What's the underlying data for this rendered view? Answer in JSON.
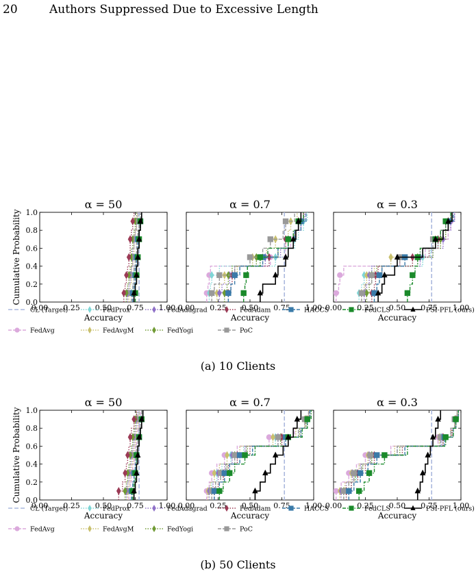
{
  "header": {
    "page_number": "20",
    "running_head": "Authors Suppressed Due to Excessive Length"
  },
  "colors": {
    "CL (Target)": "#aab8dd",
    "FedAvg": "#dba9dc",
    "FedProx": "#7fd6d6",
    "FedAvgM": "#c9c06e",
    "FedAdagrad": "#8e6fc7",
    "FedYogi": "#6f9a33",
    "FedAdam": "#9b3a55",
    "PoC": "#999999",
    "HACCS": "#3a7aa8",
    "FedCLS": "#1a8a2a",
    "PSI-PFL (ours)": "#000000"
  },
  "subfigures": [
    {
      "id": "a",
      "caption": "(a) 10 Clients"
    },
    {
      "id": "b",
      "caption": "(b) 50 Clients"
    }
  ],
  "legend": [
    "CL (Target)",
    "FedAvg",
    "FedProx",
    "FedAvgM",
    "FedAdagrad",
    "FedYogi",
    "FedAdam",
    "PoC",
    "HACCS",
    "FedCLS",
    "PSI-PFL (ours)"
  ],
  "axis": {
    "xlabel": "Accuracy",
    "ylabel": "Cumulative Probability",
    "xticks": [
      "0.00",
      "0.25",
      "0.50",
      "0.75",
      "1.00"
    ],
    "yticks": [
      "0.0",
      "0.2",
      "0.4",
      "0.6",
      "0.8",
      "1.0"
    ]
  },
  "chart_data": [
    {
      "type": "line",
      "row": "a",
      "title": "α = 50",
      "xlabel": "Accuracy",
      "ylabel": "Cumulative Probability",
      "xlim": [
        0,
        1
      ],
      "ylim": [
        0,
        1
      ],
      "cl_target": 0.78,
      "series": [
        {
          "name": "FedAvg",
          "values": [
            0.72,
            0.73,
            0.74,
            0.74,
            0.75,
            0.76,
            0.76,
            0.77,
            0.78,
            0.79
          ]
        },
        {
          "name": "FedProx",
          "values": [
            0.72,
            0.73,
            0.74,
            0.74,
            0.75,
            0.76,
            0.76,
            0.77,
            0.78,
            0.79
          ]
        },
        {
          "name": "FedAvgM",
          "values": [
            0.7,
            0.71,
            0.72,
            0.72,
            0.73,
            0.74,
            0.74,
            0.75,
            0.76,
            0.77
          ]
        },
        {
          "name": "FedAdagrad",
          "values": [
            0.69,
            0.7,
            0.71,
            0.72,
            0.73,
            0.73,
            0.74,
            0.75,
            0.76,
            0.77
          ]
        },
        {
          "name": "FedYogi",
          "values": [
            0.68,
            0.69,
            0.7,
            0.71,
            0.72,
            0.72,
            0.73,
            0.74,
            0.75,
            0.76
          ]
        },
        {
          "name": "FedAdam",
          "values": [
            0.66,
            0.67,
            0.68,
            0.69,
            0.7,
            0.71,
            0.71,
            0.72,
            0.73,
            0.74
          ]
        },
        {
          "name": "PoC",
          "values": [
            0.72,
            0.73,
            0.74,
            0.74,
            0.75,
            0.76,
            0.76,
            0.77,
            0.78,
            0.79
          ]
        },
        {
          "name": "HACCS",
          "values": [
            0.73,
            0.74,
            0.75,
            0.75,
            0.76,
            0.77,
            0.77,
            0.78,
            0.79,
            0.8
          ]
        },
        {
          "name": "FedCLS",
          "values": [
            0.75,
            0.75,
            0.76,
            0.76,
            0.77,
            0.77,
            0.78,
            0.78,
            0.79,
            0.8
          ]
        },
        {
          "name": "PSI-PFL (ours)",
          "values": [
            0.74,
            0.75,
            0.76,
            0.76,
            0.77,
            0.77,
            0.78,
            0.78,
            0.79,
            0.8
          ]
        }
      ]
    },
    {
      "type": "line",
      "row": "a",
      "title": "α = 0.7",
      "xlabel": "Accuracy",
      "ylabel": "",
      "xlim": [
        0,
        1
      ],
      "ylim": [
        0,
        1
      ],
      "cl_target": 0.77,
      "series": [
        {
          "name": "FedAvg",
          "values": [
            0.16,
            0.17,
            0.18,
            0.19,
            0.66,
            0.78,
            0.82,
            0.85,
            0.9,
            0.92
          ]
        },
        {
          "name": "FedProx",
          "values": [
            0.18,
            0.19,
            0.2,
            0.26,
            0.7,
            0.8,
            0.85,
            0.88,
            0.92,
            0.95
          ]
        },
        {
          "name": "FedAvgM",
          "values": [
            0.24,
            0.26,
            0.3,
            0.4,
            0.52,
            0.63,
            0.7,
            0.8,
            0.82,
            0.87
          ]
        },
        {
          "name": "FedAdagrad",
          "values": [
            0.26,
            0.28,
            0.34,
            0.38,
            0.62,
            0.74,
            0.8,
            0.86,
            0.9,
            0.93
          ]
        },
        {
          "name": "FedYogi",
          "values": [
            0.3,
            0.32,
            0.33,
            0.36,
            0.55,
            0.72,
            0.8,
            0.85,
            0.88,
            0.92
          ]
        },
        {
          "name": "FedAdam",
          "values": [
            0.33,
            0.35,
            0.36,
            0.38,
            0.65,
            0.72,
            0.78,
            0.85,
            0.88,
            0.92
          ]
        },
        {
          "name": "PoC",
          "values": [
            0.2,
            0.22,
            0.26,
            0.38,
            0.5,
            0.6,
            0.66,
            0.76,
            0.78,
            0.85
          ]
        },
        {
          "name": "HACCS",
          "values": [
            0.33,
            0.35,
            0.38,
            0.42,
            0.6,
            0.72,
            0.8,
            0.85,
            0.9,
            0.94
          ]
        },
        {
          "name": "FedCLS",
          "values": [
            0.45,
            0.46,
            0.47,
            0.48,
            0.58,
            0.64,
            0.8,
            0.84,
            0.88,
            0.92
          ]
        },
        {
          "name": "PSI-PFL (ours)",
          "values": [
            0.58,
            0.6,
            0.7,
            0.72,
            0.78,
            0.8,
            0.84,
            0.86,
            0.88,
            0.9
          ]
        }
      ]
    },
    {
      "type": "line",
      "row": "a",
      "title": "α = 0.3",
      "xlabel": "Accuracy",
      "ylabel": "",
      "xlim": [
        0,
        1
      ],
      "ylim": [
        0,
        1
      ],
      "cl_target": 0.77,
      "series": [
        {
          "name": "FedAvg",
          "values": [
            0.02,
            0.04,
            0.05,
            0.08,
            0.52,
            0.72,
            0.8,
            0.9,
            0.92,
            0.95
          ]
        },
        {
          "name": "FedProx",
          "values": [
            0.2,
            0.22,
            0.24,
            0.3,
            0.7,
            0.76,
            0.82,
            0.86,
            0.9,
            0.95
          ]
        },
        {
          "name": "FedAvgM",
          "values": [
            0.22,
            0.24,
            0.26,
            0.32,
            0.45,
            0.7,
            0.8,
            0.88,
            0.9,
            0.93
          ]
        },
        {
          "name": "FedAdagrad",
          "values": [
            0.24,
            0.26,
            0.28,
            0.3,
            0.68,
            0.78,
            0.86,
            0.88,
            0.92,
            0.95
          ]
        },
        {
          "name": "FedYogi",
          "values": [
            0.26,
            0.28,
            0.3,
            0.34,
            0.66,
            0.78,
            0.84,
            0.88,
            0.9,
            0.93
          ]
        },
        {
          "name": "FedAdam",
          "values": [
            0.3,
            0.32,
            0.33,
            0.35,
            0.62,
            0.75,
            0.82,
            0.86,
            0.9,
            0.94
          ]
        },
        {
          "name": "PoC",
          "values": [
            0.22,
            0.25,
            0.3,
            0.38,
            0.52,
            0.7,
            0.78,
            0.84,
            0.88,
            0.92
          ]
        },
        {
          "name": "HACCS",
          "values": [
            0.32,
            0.34,
            0.36,
            0.38,
            0.56,
            0.7,
            0.8,
            0.86,
            0.9,
            0.94
          ]
        },
        {
          "name": "FedCLS",
          "values": [
            0.58,
            0.6,
            0.62,
            0.64,
            0.66,
            0.68,
            0.8,
            0.84,
            0.88,
            0.92
          ]
        },
        {
          "name": "PSI-PFL (ours)",
          "values": [
            0.35,
            0.38,
            0.4,
            0.48,
            0.5,
            0.7,
            0.8,
            0.86,
            0.9,
            0.93
          ]
        }
      ]
    },
    {
      "type": "line",
      "row": "b",
      "title": "α = 50",
      "xlabel": "Accuracy",
      "ylabel": "Cumulative Probability",
      "xlim": [
        0,
        1
      ],
      "ylim": [
        0,
        1
      ],
      "cl_target": 0.78,
      "series": [
        {
          "name": "FedAvg",
          "values": [
            0.7,
            0.71,
            0.72,
            0.73,
            0.74,
            0.75,
            0.76,
            0.77,
            0.78,
            0.79
          ]
        },
        {
          "name": "FedProx",
          "values": [
            0.72,
            0.73,
            0.74,
            0.75,
            0.75,
            0.76,
            0.77,
            0.78,
            0.79,
            0.8
          ]
        },
        {
          "name": "FedAvgM",
          "values": [
            0.69,
            0.7,
            0.71,
            0.72,
            0.73,
            0.74,
            0.75,
            0.76,
            0.77,
            0.78
          ]
        },
        {
          "name": "FedAdagrad",
          "values": [
            0.68,
            0.69,
            0.7,
            0.71,
            0.72,
            0.73,
            0.74,
            0.75,
            0.76,
            0.77
          ]
        },
        {
          "name": "FedYogi",
          "values": [
            0.67,
            0.68,
            0.69,
            0.7,
            0.71,
            0.72,
            0.73,
            0.74,
            0.75,
            0.76
          ]
        },
        {
          "name": "FedAdam",
          "values": [
            0.62,
            0.65,
            0.67,
            0.68,
            0.69,
            0.7,
            0.71,
            0.72,
            0.74,
            0.76
          ]
        },
        {
          "name": "PoC",
          "values": [
            0.72,
            0.73,
            0.74,
            0.75,
            0.75,
            0.76,
            0.77,
            0.78,
            0.79,
            0.8
          ]
        },
        {
          "name": "HACCS",
          "values": [
            0.72,
            0.73,
            0.74,
            0.75,
            0.76,
            0.77,
            0.78,
            0.79,
            0.8,
            0.81
          ]
        },
        {
          "name": "FedCLS",
          "values": [
            0.73,
            0.74,
            0.75,
            0.76,
            0.76,
            0.77,
            0.78,
            0.79,
            0.8,
            0.81
          ]
        },
        {
          "name": "PSI-PFL (ours)",
          "values": [
            0.74,
            0.75,
            0.76,
            0.76,
            0.77,
            0.77,
            0.78,
            0.79,
            0.8,
            0.81
          ]
        }
      ]
    },
    {
      "type": "line",
      "row": "b",
      "title": "α = 0.7",
      "xlabel": "Accuracy",
      "ylabel": "",
      "xlim": [
        0,
        1
      ],
      "ylim": [
        0,
        1
      ],
      "cl_target": 0.77,
      "series": [
        {
          "name": "FedAvg",
          "values": [
            0.16,
            0.18,
            0.2,
            0.24,
            0.3,
            0.4,
            0.65,
            0.85,
            0.93,
            0.96
          ]
        },
        {
          "name": "FedProx",
          "values": [
            0.18,
            0.2,
            0.24,
            0.28,
            0.35,
            0.45,
            0.7,
            0.88,
            0.94,
            0.97
          ]
        },
        {
          "name": "FedAvgM",
          "values": [
            0.17,
            0.19,
            0.22,
            0.26,
            0.32,
            0.42,
            0.68,
            0.86,
            0.93,
            0.96
          ]
        },
        {
          "name": "FedAdagrad",
          "values": [
            0.18,
            0.21,
            0.25,
            0.3,
            0.36,
            0.46,
            0.72,
            0.88,
            0.94,
            0.97
          ]
        },
        {
          "name": "FedYogi",
          "values": [
            0.2,
            0.23,
            0.27,
            0.32,
            0.38,
            0.48,
            0.74,
            0.89,
            0.94,
            0.97
          ]
        },
        {
          "name": "FedAdam",
          "values": [
            0.22,
            0.25,
            0.29,
            0.33,
            0.4,
            0.5,
            0.75,
            0.9,
            0.95,
            0.97
          ]
        },
        {
          "name": "PoC",
          "values": [
            0.2,
            0.23,
            0.27,
            0.31,
            0.38,
            0.47,
            0.72,
            0.88,
            0.93,
            0.96
          ]
        },
        {
          "name": "HACCS",
          "values": [
            0.22,
            0.26,
            0.3,
            0.34,
            0.42,
            0.52,
            0.78,
            0.9,
            0.95,
            0.97
          ]
        },
        {
          "name": "FedCLS",
          "values": [
            0.26,
            0.29,
            0.34,
            0.38,
            0.46,
            0.54,
            0.8,
            0.91,
            0.95,
            0.98
          ]
        },
        {
          "name": "PSI-PFL (ours)",
          "values": [
            0.54,
            0.58,
            0.62,
            0.66,
            0.7,
            0.76,
            0.8,
            0.84,
            0.87,
            0.9
          ]
        }
      ]
    },
    {
      "type": "line",
      "row": "b",
      "title": "α = 0.3",
      "xlabel": "Accuracy",
      "ylabel": "",
      "xlim": [
        0,
        1
      ],
      "ylim": [
        0,
        1
      ],
      "cl_target": 0.77,
      "series": [
        {
          "name": "FedAvg",
          "values": [
            0.02,
            0.06,
            0.12,
            0.18,
            0.25,
            0.45,
            0.82,
            0.92,
            0.95,
            0.97
          ]
        },
        {
          "name": "FedProx",
          "values": [
            0.1,
            0.14,
            0.18,
            0.22,
            0.3,
            0.5,
            0.84,
            0.92,
            0.95,
            0.97
          ]
        },
        {
          "name": "FedAvgM",
          "values": [
            0.05,
            0.09,
            0.14,
            0.2,
            0.27,
            0.48,
            0.83,
            0.92,
            0.95,
            0.97
          ]
        },
        {
          "name": "FedAdagrad",
          "values": [
            0.06,
            0.1,
            0.15,
            0.21,
            0.28,
            0.5,
            0.85,
            0.93,
            0.96,
            0.98
          ]
        },
        {
          "name": "FedYogi",
          "values": [
            0.08,
            0.12,
            0.17,
            0.23,
            0.3,
            0.52,
            0.86,
            0.93,
            0.96,
            0.98
          ]
        },
        {
          "name": "FedAdam",
          "values": [
            0.1,
            0.14,
            0.19,
            0.25,
            0.32,
            0.54,
            0.86,
            0.93,
            0.96,
            0.98
          ]
        },
        {
          "name": "PoC",
          "values": [
            0.08,
            0.12,
            0.16,
            0.22,
            0.29,
            0.5,
            0.84,
            0.92,
            0.95,
            0.97
          ]
        },
        {
          "name": "HACCS",
          "values": [
            0.12,
            0.16,
            0.21,
            0.27,
            0.34,
            0.56,
            0.87,
            0.94,
            0.96,
            0.98
          ]
        },
        {
          "name": "FedCLS",
          "values": [
            0.2,
            0.24,
            0.28,
            0.32,
            0.4,
            0.58,
            0.88,
            0.94,
            0.96,
            0.98
          ]
        },
        {
          "name": "PSI-PFL (ours)",
          "values": [
            0.66,
            0.68,
            0.7,
            0.72,
            0.74,
            0.76,
            0.78,
            0.8,
            0.82,
            0.84
          ]
        }
      ]
    }
  ]
}
